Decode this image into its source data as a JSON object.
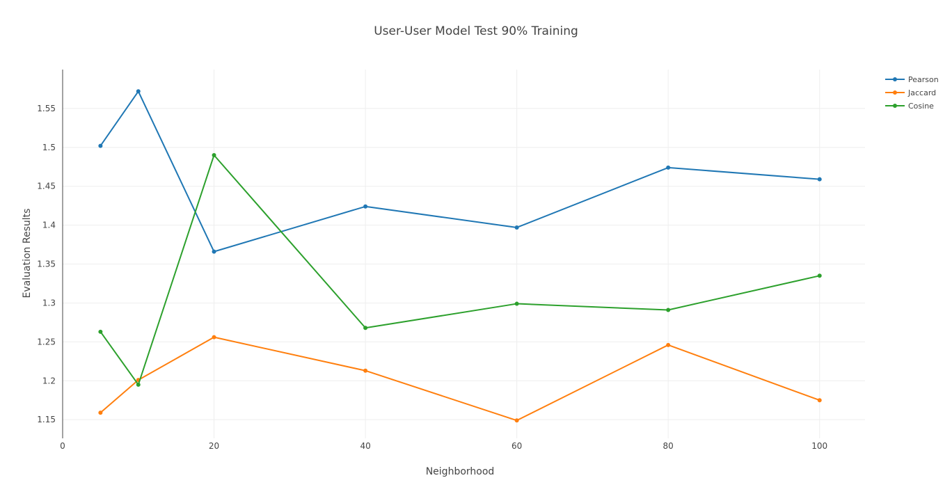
{
  "chart_data": {
    "type": "line",
    "title": "User-User Model Test 90% Training",
    "xlabel": "Neighborhood",
    "ylabel": "Evaluation Results",
    "x": [
      5,
      10,
      20,
      40,
      60,
      80,
      100
    ],
    "xlim": [
      0,
      106
    ],
    "ylim": [
      1.126,
      1.6
    ],
    "xticks": [
      0,
      20,
      40,
      60,
      80,
      100
    ],
    "yticks": [
      1.15,
      1.2,
      1.25,
      1.3,
      1.35,
      1.4,
      1.45,
      1.5,
      1.55
    ],
    "ytick_labels": [
      "1.15",
      "1.2",
      "1.25",
      "1.3",
      "1.35",
      "1.4",
      "1.45",
      "1.5",
      "1.55"
    ],
    "grid": true,
    "legend_position": "top-right",
    "series": [
      {
        "name": "Pearson",
        "color": "#1f77b4",
        "values": [
          1.502,
          1.572,
          1.366,
          1.424,
          1.397,
          1.474,
          1.459
        ]
      },
      {
        "name": "Jaccard",
        "color": "#ff7f0e",
        "values": [
          1.159,
          1.201,
          1.256,
          1.213,
          1.149,
          1.246,
          1.175
        ]
      },
      {
        "name": "Cosine",
        "color": "#2ca02c",
        "values": [
          1.263,
          1.195,
          1.49,
          1.268,
          1.299,
          1.291,
          1.335
        ]
      }
    ]
  }
}
